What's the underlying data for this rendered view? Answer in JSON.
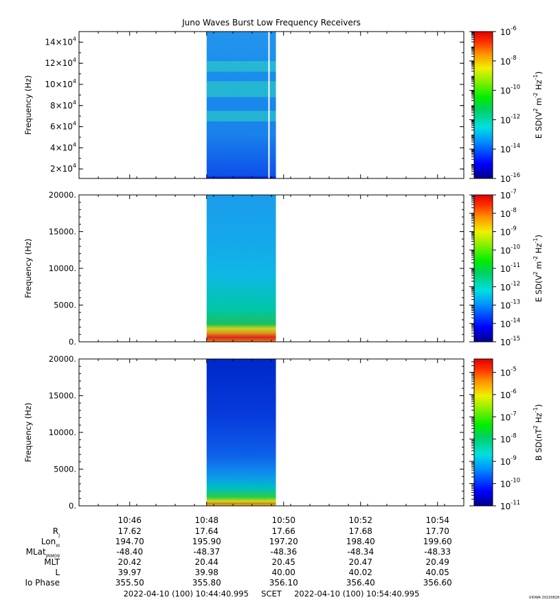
{
  "chart_data": {
    "type": "heatmap",
    "title": "Juno Waves Burst Low Frequency Receivers",
    "data_coverage": {
      "start": "10:48",
      "end": "10:49.8"
    },
    "panels": [
      {
        "ylabel": "Frequency (Hz)",
        "ylim": [
          11000,
          150000
        ],
        "yticks": [
          {
            "v": 20000,
            "m": "2",
            "e": "4"
          },
          {
            "v": 40000,
            "m": "4",
            "e": "4"
          },
          {
            "v": 60000,
            "m": "6",
            "e": "4"
          },
          {
            "v": 80000,
            "m": "8",
            "e": "4"
          },
          {
            "v": 100000,
            "m": "10",
            "e": "4"
          },
          {
            "v": 120000,
            "m": "12",
            "e": "4"
          },
          {
            "v": 140000,
            "m": "14",
            "e": "4"
          }
        ],
        "emission_bands_hz": [
          [
            65000,
            75000
          ],
          [
            88000,
            103000
          ],
          [
            112000,
            122000
          ]
        ],
        "colorbar": {
          "label": "E SD(V",
          "label_parts": [
            "2",
            " m",
            "-2",
            " Hz",
            "-1",
            ")"
          ],
          "range_exp": [
            -16,
            -6
          ],
          "ticks": [
            "-6",
            "-8",
            "-10",
            "-12",
            "-14",
            "-16"
          ]
        }
      },
      {
        "ylabel": "Frequency (Hz)",
        "ylim": [
          0,
          20000
        ],
        "yticks": [
          "0.",
          "5000.",
          "10000.",
          "15000.",
          "20000."
        ],
        "colorbar": {
          "label": "E SD(V",
          "label_parts": [
            "2",
            " m",
            "-2",
            " Hz",
            "-1",
            ")"
          ],
          "range_exp": [
            -15,
            -7
          ],
          "ticks": [
            "-7",
            "-8",
            "-9",
            "-10",
            "-11",
            "-12",
            "-13",
            "-14",
            "-15"
          ]
        }
      },
      {
        "ylabel": "Frequency (Hz)",
        "ylim": [
          0,
          20000
        ],
        "yticks": [
          "0.",
          "5000.",
          "10000.",
          "15000.",
          "20000."
        ],
        "colorbar": {
          "label": "B SD(nT",
          "label_parts": [
            "2",
            " Hz",
            "-1",
            ")"
          ],
          "range_exp": [
            -11,
            -4.4
          ],
          "ticks": [
            "-5",
            "-6",
            "-7",
            "-8",
            "-9",
            "-10",
            "-11"
          ]
        }
      }
    ],
    "x_ticks": [
      "10:46",
      "10:48",
      "10:50",
      "10:52",
      "10:54"
    ],
    "ephemeris": [
      {
        "label": "R",
        "sub": "J",
        "values": [
          "17.62",
          "17.64",
          "17.66",
          "17.68",
          "17.70"
        ]
      },
      {
        "label": "Lon",
        "sub": "III",
        "values": [
          "194.70",
          "195.90",
          "197.20",
          "198.40",
          "199.60"
        ]
      },
      {
        "label": "MLat",
        "sub": "JRM09",
        "values": [
          "-48.40",
          "-48.37",
          "-48.36",
          "-48.34",
          "-48.33"
        ]
      },
      {
        "label": "MLT",
        "sub": "",
        "values": [
          "20.42",
          "20.44",
          "20.45",
          "20.47",
          "20.49"
        ]
      },
      {
        "label": "L",
        "sub": "",
        "values": [
          "39.97",
          "39.98",
          "40.00",
          "40.02",
          "40.05"
        ]
      },
      {
        "label": "Io Phase",
        "sub": "",
        "values": [
          "355.50",
          "355.80",
          "356.10",
          "356.40",
          "356.60"
        ]
      }
    ],
    "time_range_text": "2022-04-10 (100) 10:44:40.995     SCET     2022-04-10 (100) 10:54:40.995",
    "footer_stamp": "UIOWA 20220828"
  }
}
